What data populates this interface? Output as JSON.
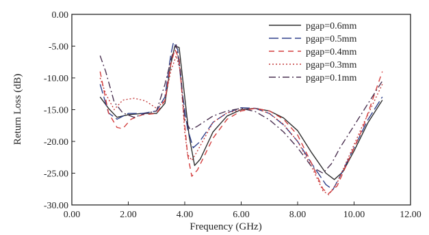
{
  "chart_data": {
    "type": "line",
    "title": "",
    "xlabel": "Frequency (GHz)",
    "ylabel": "Return Loss (dB)",
    "xlim": [
      0,
      12
    ],
    "ylim": [
      -30,
      0
    ],
    "x_ticks": [
      0,
      2,
      4,
      6,
      8,
      10,
      12
    ],
    "x_tick_labels": [
      "0.00",
      "2.00",
      "4.00",
      "6.00",
      "8.00",
      "10.00",
      "12.00"
    ],
    "y_ticks": [
      0,
      -5,
      -10,
      -15,
      -20,
      -25,
      -30
    ],
    "y_tick_labels": [
      "0.00",
      "-5.00",
      "-10.00",
      "-15.00",
      "-20.00",
      "-25.00",
      "-30.00"
    ],
    "grid": false,
    "legend_position": "top-right",
    "series": [
      {
        "name": "pgap=0.6mm",
        "color": "#2b2b2b",
        "dash": "solid",
        "points": [
          [
            1.0,
            -13.0
          ],
          [
            1.3,
            -14.8
          ],
          [
            1.6,
            -16.2
          ],
          [
            2.0,
            -15.8
          ],
          [
            2.5,
            -15.6
          ],
          [
            3.0,
            -15.6
          ],
          [
            3.3,
            -14.0
          ],
          [
            3.5,
            -8.0
          ],
          [
            3.65,
            -5.0
          ],
          [
            3.8,
            -5.2
          ],
          [
            3.95,
            -11.0
          ],
          [
            4.15,
            -19.0
          ],
          [
            4.35,
            -23.8
          ],
          [
            4.55,
            -22.8
          ],
          [
            5.0,
            -18.5
          ],
          [
            5.5,
            -16.0
          ],
          [
            6.0,
            -15.0
          ],
          [
            6.5,
            -14.8
          ],
          [
            7.0,
            -15.2
          ],
          [
            7.5,
            -16.3
          ],
          [
            8.0,
            -18.3
          ],
          [
            8.5,
            -21.8
          ],
          [
            9.0,
            -25.0
          ],
          [
            9.3,
            -26.0
          ],
          [
            9.6,
            -24.8
          ],
          [
            10.0,
            -21.5
          ],
          [
            10.5,
            -17.0
          ],
          [
            11.0,
            -13.5
          ]
        ]
      },
      {
        "name": "pgap=0.5mm",
        "color": "#2e3f8a",
        "dash": "long-dash",
        "points": [
          [
            1.0,
            -11.0
          ],
          [
            1.3,
            -15.5
          ],
          [
            1.6,
            -16.5
          ],
          [
            2.0,
            -15.6
          ],
          [
            2.5,
            -15.6
          ],
          [
            3.0,
            -15.2
          ],
          [
            3.3,
            -13.0
          ],
          [
            3.5,
            -6.5
          ],
          [
            3.6,
            -4.4
          ],
          [
            3.75,
            -5.5
          ],
          [
            3.9,
            -12.0
          ],
          [
            4.1,
            -18.0
          ],
          [
            4.3,
            -21.0
          ],
          [
            4.5,
            -20.2
          ],
          [
            5.0,
            -17.0
          ],
          [
            5.5,
            -15.5
          ],
          [
            6.0,
            -14.7
          ],
          [
            6.5,
            -14.8
          ],
          [
            7.0,
            -15.6
          ],
          [
            7.5,
            -17.4
          ],
          [
            8.0,
            -20.0
          ],
          [
            8.5,
            -23.5
          ],
          [
            9.0,
            -26.8
          ],
          [
            9.25,
            -27.6
          ],
          [
            9.5,
            -25.5
          ],
          [
            10.0,
            -21.0
          ],
          [
            10.5,
            -16.5
          ],
          [
            11.0,
            -13.0
          ]
        ]
      },
      {
        "name": "pgap=0.4mm",
        "color": "#d33b3b",
        "dash": "dash",
        "points": [
          [
            1.0,
            -9.0
          ],
          [
            1.3,
            -15.5
          ],
          [
            1.6,
            -17.8
          ],
          [
            1.8,
            -18.0
          ],
          [
            2.1,
            -16.5
          ],
          [
            2.5,
            -15.8
          ],
          [
            3.0,
            -15.6
          ],
          [
            3.3,
            -13.5
          ],
          [
            3.5,
            -8.0
          ],
          [
            3.65,
            -5.5
          ],
          [
            3.8,
            -7.0
          ],
          [
            3.95,
            -15.0
          ],
          [
            4.1,
            -22.0
          ],
          [
            4.25,
            -25.5
          ],
          [
            4.45,
            -24.5
          ],
          [
            5.0,
            -19.5
          ],
          [
            5.5,
            -16.5
          ],
          [
            6.0,
            -15.2
          ],
          [
            6.5,
            -14.8
          ],
          [
            7.0,
            -15.2
          ],
          [
            7.5,
            -16.5
          ],
          [
            8.0,
            -19.0
          ],
          [
            8.5,
            -23.5
          ],
          [
            8.9,
            -27.5
          ],
          [
            9.1,
            -28.2
          ],
          [
            9.4,
            -27.0
          ],
          [
            9.8,
            -23.0
          ],
          [
            10.3,
            -18.0
          ],
          [
            11.0,
            -9.0
          ]
        ]
      },
      {
        "name": "pgap=0.3mm",
        "color": "#c43a3a",
        "dash": "dot",
        "points": [
          [
            1.0,
            -10.0
          ],
          [
            1.2,
            -12.5
          ],
          [
            1.5,
            -15.0
          ],
          [
            1.8,
            -13.5
          ],
          [
            2.2,
            -13.2
          ],
          [
            2.6,
            -13.6
          ],
          [
            3.0,
            -14.8
          ],
          [
            3.3,
            -13.5
          ],
          [
            3.5,
            -9.0
          ],
          [
            3.7,
            -6.5
          ],
          [
            3.85,
            -9.0
          ],
          [
            4.0,
            -18.5
          ],
          [
            4.1,
            -22.0
          ],
          [
            4.25,
            -23.0
          ],
          [
            4.45,
            -21.5
          ],
          [
            5.0,
            -17.0
          ],
          [
            5.5,
            -15.5
          ],
          [
            6.0,
            -15.0
          ],
          [
            6.5,
            -14.8
          ],
          [
            7.0,
            -15.6
          ],
          [
            7.5,
            -17.3
          ],
          [
            8.0,
            -20.0
          ],
          [
            8.5,
            -24.0
          ],
          [
            8.9,
            -27.8
          ],
          [
            9.1,
            -28.4
          ],
          [
            9.4,
            -26.5
          ],
          [
            9.8,
            -22.5
          ],
          [
            10.3,
            -17.5
          ],
          [
            11.0,
            -11.0
          ]
        ]
      },
      {
        "name": "pgap=0.1mm",
        "color": "#4a3050",
        "dash": "dash-dot",
        "points": [
          [
            1.0,
            -6.5
          ],
          [
            1.2,
            -9.0
          ],
          [
            1.5,
            -13.8
          ],
          [
            1.8,
            -15.5
          ],
          [
            2.2,
            -16.2
          ],
          [
            2.6,
            -15.6
          ],
          [
            3.0,
            -15.2
          ],
          [
            3.3,
            -11.0
          ],
          [
            3.55,
            -6.5
          ],
          [
            3.7,
            -4.8
          ],
          [
            3.85,
            -9.0
          ],
          [
            4.0,
            -16.5
          ],
          [
            4.2,
            -18.2
          ],
          [
            4.45,
            -17.6
          ],
          [
            5.0,
            -16.0
          ],
          [
            5.5,
            -15.2
          ],
          [
            6.0,
            -14.8
          ],
          [
            6.5,
            -15.3
          ],
          [
            7.0,
            -16.6
          ],
          [
            7.5,
            -18.5
          ],
          [
            8.0,
            -21.0
          ],
          [
            8.5,
            -24.0
          ],
          [
            8.9,
            -25.0
          ],
          [
            9.2,
            -23.5
          ],
          [
            9.5,
            -21.0
          ],
          [
            10.0,
            -17.5
          ],
          [
            10.5,
            -14.0
          ],
          [
            11.0,
            -10.5
          ]
        ]
      }
    ]
  }
}
